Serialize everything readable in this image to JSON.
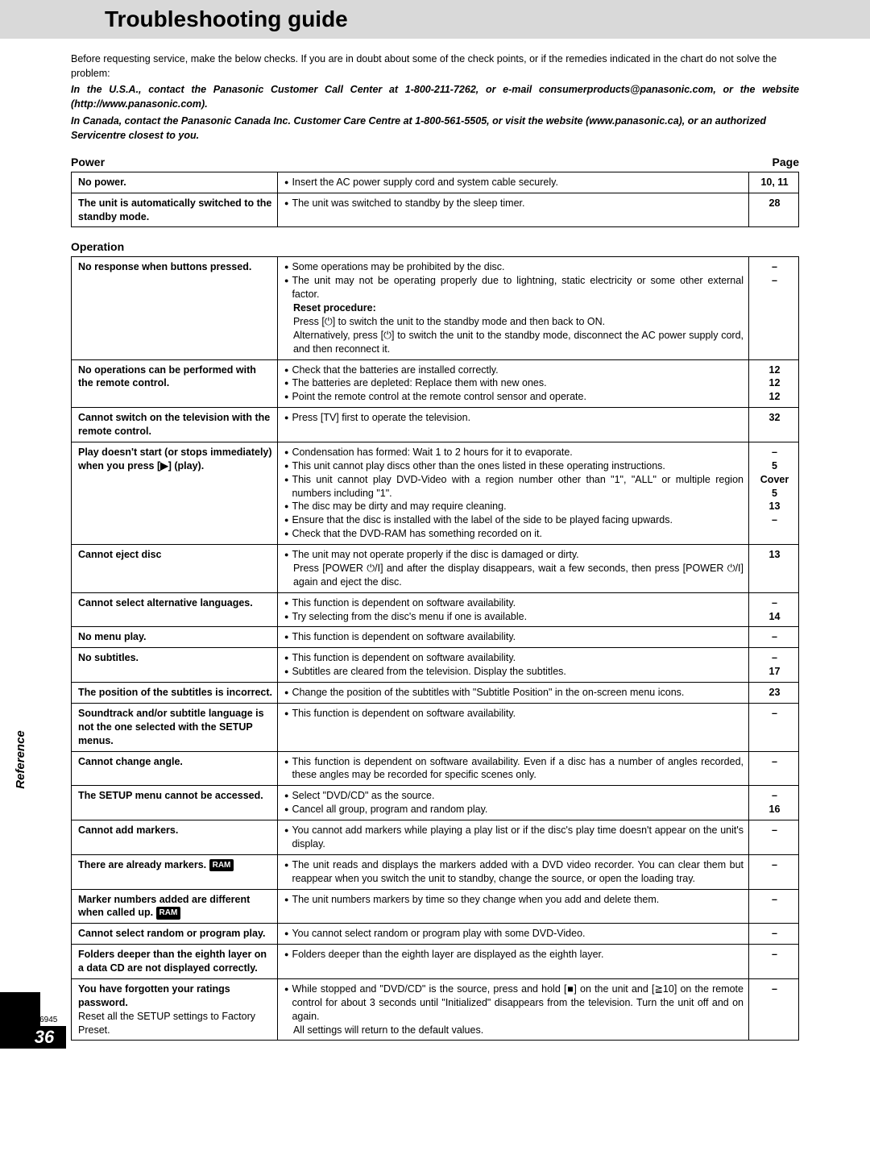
{
  "title": "Troubleshooting guide",
  "doc_id": "RQT6945",
  "page_number": "36",
  "side_label": "Reference",
  "intro": {
    "line1": "Before requesting service, make the below checks. If you are in doubt about some of the check points, or if the remedies indicated in the chart do not solve the problem:",
    "line2": "In the U.S.A., contact the Panasonic Customer Call Center at 1-800-211-7262, or e-mail consumerproducts@panasonic.com, or the website (http://www.panasonic.com).",
    "line3": "In Canada, contact the Panasonic Canada Inc. Customer Care Centre at 1-800-561-5505, or visit the website (www.panasonic.ca), or an authorized Servicentre closest to you."
  },
  "sections": [
    {
      "heading_left": "Power",
      "heading_right": "Page",
      "rows": [
        {
          "problem": "No power.",
          "remedies": [
            {
              "bullet": true,
              "text": "Insert the AC power supply cord and system cable securely."
            }
          ],
          "pages": [
            "10, 11"
          ]
        },
        {
          "problem": "The unit is automatically switched to the standby mode.",
          "remedies": [
            {
              "bullet": true,
              "text": "The unit was switched to standby by the sleep timer."
            }
          ],
          "pages": [
            "28"
          ]
        }
      ]
    },
    {
      "heading_left": "Operation",
      "heading_right": "",
      "rows": [
        {
          "problem": "No response when buttons pressed.",
          "remedies": [
            {
              "bullet": true,
              "text": "Some operations may be prohibited by the disc."
            },
            {
              "bullet": true,
              "justify": true,
              "text": "The unit may not be operating properly due to lightning, static electricity or some other external factor."
            },
            {
              "bullet": false,
              "bold": true,
              "text": "Reset procedure:"
            },
            {
              "bullet": false,
              "text": "Press [⏻] to switch the unit to the standby mode and then back to ON."
            },
            {
              "bullet": false,
              "justify": true,
              "text": "Alternatively, press [⏻] to switch the unit to the standby mode, disconnect the AC power supply cord, and then reconnect it."
            }
          ],
          "pages": [
            "–",
            "–"
          ]
        },
        {
          "problem": "No operations can be performed with the remote control.",
          "remedies": [
            {
              "bullet": true,
              "text": "Check that the batteries are installed correctly."
            },
            {
              "bullet": true,
              "text": "The batteries are depleted: Replace them with new ones."
            },
            {
              "bullet": true,
              "text": "Point the remote control at the remote control sensor and operate."
            }
          ],
          "pages": [
            "12",
            "12",
            "12"
          ]
        },
        {
          "problem": "Cannot switch on the television with the remote control.",
          "remedies": [
            {
              "bullet": true,
              "text": "Press [TV] first to operate the television."
            }
          ],
          "pages": [
            "32"
          ]
        },
        {
          "problem": "Play doesn't start (or stops immediately) when you press [▶] (play).",
          "remedies": [
            {
              "bullet": true,
              "text": "Condensation has formed: Wait 1 to 2 hours for it to evaporate."
            },
            {
              "bullet": true,
              "text": "This unit cannot play discs other than the ones listed in these operating instructions."
            },
            {
              "bullet": true,
              "justify": true,
              "text": "This unit cannot play DVD-Video with a region number other than \"1\", \"ALL\" or multiple region numbers including \"1\"."
            },
            {
              "bullet": true,
              "text": "The disc may be dirty and may require cleaning."
            },
            {
              "bullet": true,
              "text": "Ensure that the disc is installed with the label of the side to be played facing upwards."
            },
            {
              "bullet": true,
              "text": "Check that the DVD-RAM has something recorded on it."
            }
          ],
          "pages": [
            "–",
            "5",
            "Cover",
            " ",
            "5",
            "13",
            "–"
          ]
        },
        {
          "problem": "Cannot eject disc",
          "remedies": [
            {
              "bullet": true,
              "text": "The unit may not operate properly if the disc is damaged or dirty."
            },
            {
              "bullet": false,
              "justify": true,
              "text": "Press [POWER ⏻/I] and after the display disappears, wait a few seconds, then press [POWER ⏻/I] again and eject the disc."
            }
          ],
          "pages": [
            "13"
          ]
        },
        {
          "problem": "Cannot select alternative languages.",
          "remedies": [
            {
              "bullet": true,
              "text": "This function is dependent on software availability."
            },
            {
              "bullet": true,
              "text": "Try selecting from the disc's menu if one is available."
            }
          ],
          "pages": [
            "–",
            "14"
          ]
        },
        {
          "problem": "No menu play.",
          "remedies": [
            {
              "bullet": true,
              "text": "This function is dependent on software availability."
            }
          ],
          "pages": [
            "–"
          ]
        },
        {
          "problem": "No subtitles.",
          "remedies": [
            {
              "bullet": true,
              "text": "This function is dependent on software availability."
            },
            {
              "bullet": true,
              "text": "Subtitles are cleared from the television. Display the subtitles."
            }
          ],
          "pages": [
            "–",
            "17"
          ]
        },
        {
          "problem": "The position of the subtitles is incorrect.",
          "remedies": [
            {
              "bullet": true,
              "text": "Change the position of the subtitles with \"Subtitle Position\" in the on-screen menu icons."
            }
          ],
          "pages": [
            "23"
          ]
        },
        {
          "problem": "Soundtrack and/or subtitle language is not the one selected with the SETUP menus.",
          "remedies": [
            {
              "bullet": true,
              "text": "This function is dependent on software availability."
            }
          ],
          "pages": [
            "–"
          ]
        },
        {
          "problem": "Cannot change angle.",
          "remedies": [
            {
              "bullet": true,
              "justify": true,
              "text": "This function is dependent on software availability. Even if a disc has a number of angles recorded, these angles may be recorded for specific scenes only."
            }
          ],
          "pages": [
            "–"
          ]
        },
        {
          "problem": "The SETUP menu cannot be accessed.",
          "remedies": [
            {
              "bullet": true,
              "text": "Select \"DVD/CD\" as the source."
            },
            {
              "bullet": true,
              "text": "Cancel all group, program and random play."
            }
          ],
          "pages": [
            "–",
            "16"
          ]
        },
        {
          "problem": "Cannot add markers.",
          "remedies": [
            {
              "bullet": true,
              "justify": true,
              "text": "You cannot add markers while playing a play list or if the disc's play time doesn't appear on the unit's display."
            }
          ],
          "pages": [
            "–"
          ]
        },
        {
          "problem_html": "There are already markers. <span class='ram-badge'>RAM</span>",
          "remedies": [
            {
              "bullet": true,
              "justify": true,
              "text": "The unit reads and displays the markers added with a DVD video recorder. You can clear them but reappear when you switch the unit to standby, change the source, or open the loading tray."
            }
          ],
          "pages": [
            "–"
          ]
        },
        {
          "problem_html": "Marker numbers added are different when called up. <span class='ram-badge'>RAM</span>",
          "remedies": [
            {
              "bullet": true,
              "text": "The unit numbers markers by time so they change when you add and delete them."
            }
          ],
          "pages": [
            "–"
          ]
        },
        {
          "problem": "Cannot select random or program play.",
          "remedies": [
            {
              "bullet": true,
              "text": "You cannot select random or program play with some DVD-Video."
            }
          ],
          "pages": [
            "–"
          ]
        },
        {
          "problem": "Folders deeper than the eighth layer on a data CD are not displayed correctly.",
          "remedies": [
            {
              "bullet": true,
              "text": "Folders deeper than the eighth layer are displayed as the eighth layer."
            }
          ],
          "pages": [
            "–"
          ]
        },
        {
          "problem_html": "<b>You have forgotten your ratings password.</b><br><span style='font-weight:normal'>Reset all the SETUP settings to Factory Preset.</span>",
          "remedies": [
            {
              "bullet": true,
              "justify": true,
              "text": "While stopped and \"DVD/CD\" is the source, press and hold [■] on the unit and [≧10] on the remote control for about 3 seconds until \"Initialized\" disappears from the television. Turn the unit off and on again."
            },
            {
              "bullet": false,
              "text": "All settings will return to the default values."
            }
          ],
          "pages": [
            "–"
          ]
        }
      ]
    }
  ]
}
